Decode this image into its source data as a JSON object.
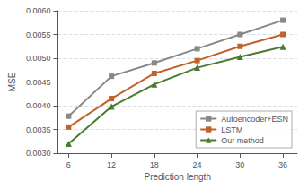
{
  "chart_data": {
    "type": "line",
    "x": [
      6,
      12,
      18,
      24,
      30,
      36
    ],
    "series": [
      {
        "name": "Autoencoder+ESN",
        "color": "#888888",
        "marker": "square",
        "values": [
          0.00378,
          0.00462,
          0.0049,
          0.0052,
          0.0055,
          0.0058
        ]
      },
      {
        "name": "LSTM",
        "color": "#c0622a",
        "marker": "square",
        "values": [
          0.00355,
          0.00415,
          0.00468,
          0.00495,
          0.00525,
          0.0055
        ]
      },
      {
        "name": "Our method",
        "color": "#4a7a30",
        "marker": "triangle",
        "values": [
          0.0032,
          0.00398,
          0.00445,
          0.0048,
          0.00503,
          0.00524
        ]
      }
    ],
    "xlabel": "Prediction length",
    "ylabel": "MSE",
    "xlim": [
      4.5,
      38
    ],
    "xticks": [
      6,
      12,
      18,
      24,
      30,
      36
    ],
    "ylim": [
      0.003,
      0.006
    ],
    "yticks": [
      {
        "value": 0.003,
        "label": "0.0030"
      },
      0.0035,
      {
        "value": 0.004,
        "label": "0.0040"
      },
      0.0045,
      {
        "value": 0.005,
        "label": "0.0050"
      },
      0.0055,
      {
        "value": 0.006,
        "label": "0.0060"
      }
    ],
    "grid": true,
    "legend": "lower right"
  }
}
